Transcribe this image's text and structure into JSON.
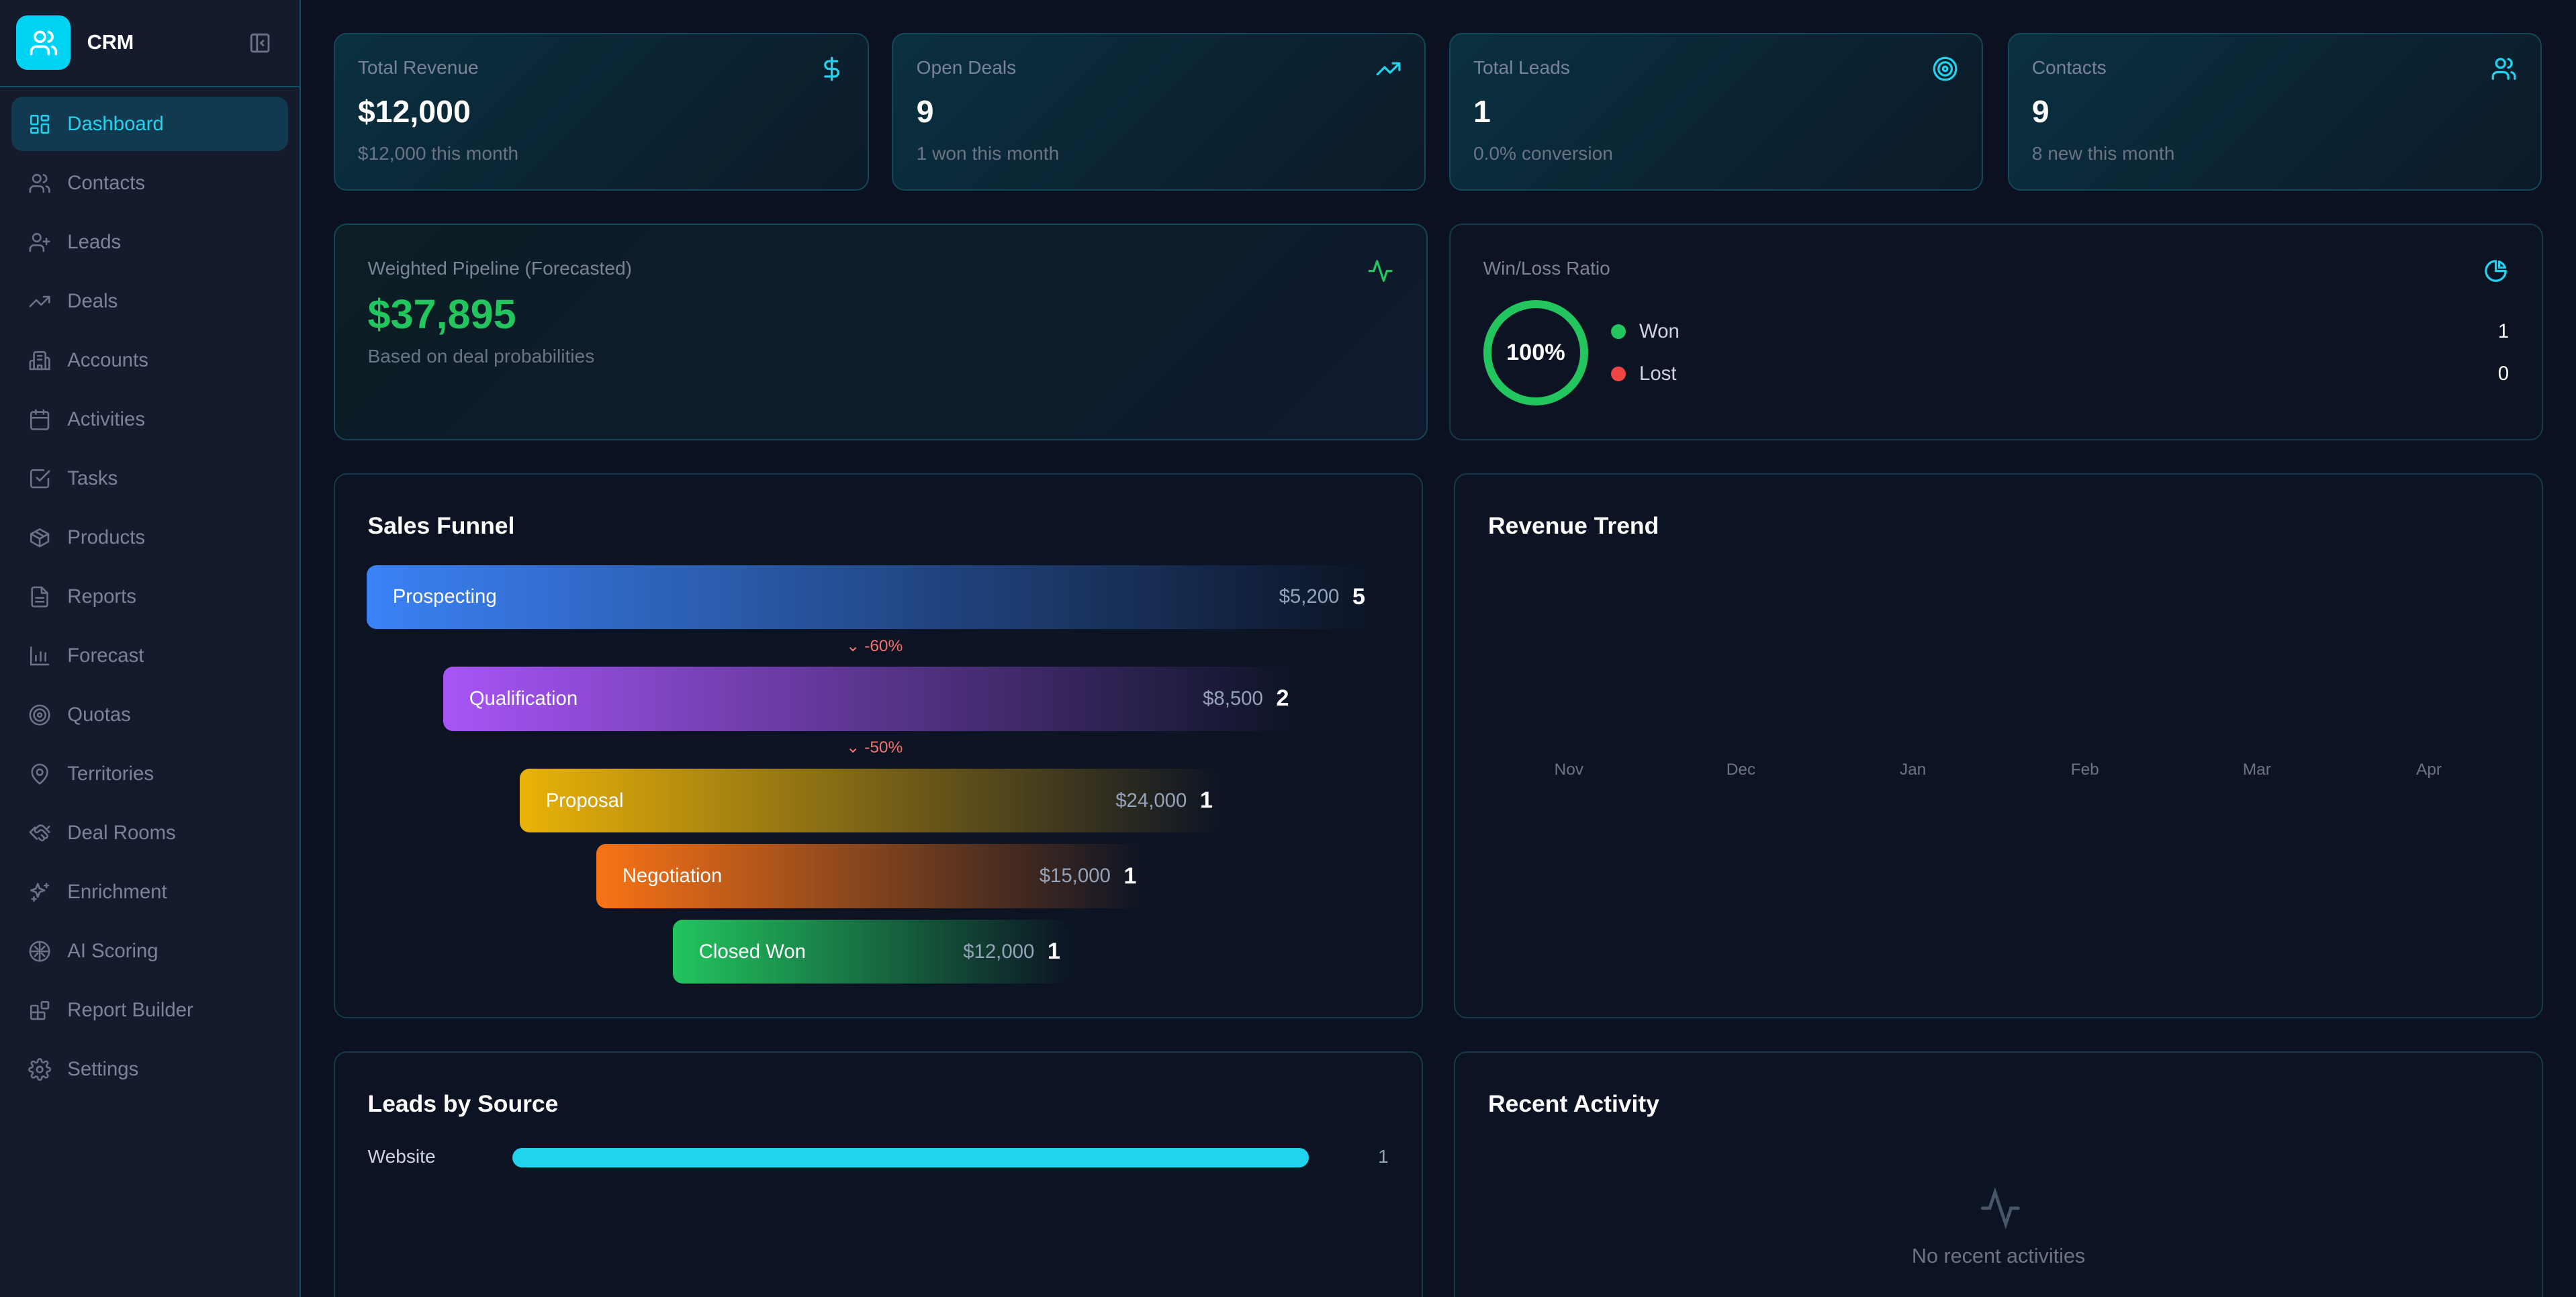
{
  "app": {
    "title": "CRM"
  },
  "sidebar": {
    "items": [
      {
        "label": "Dashboard",
        "icon": "layout-dashboard-icon",
        "active": true
      },
      {
        "label": "Contacts",
        "icon": "users-icon"
      },
      {
        "label": "Leads",
        "icon": "user-plus-icon"
      },
      {
        "label": "Deals",
        "icon": "trending-up-icon"
      },
      {
        "label": "Accounts",
        "icon": "building-icon"
      },
      {
        "label": "Activities",
        "icon": "calendar-icon"
      },
      {
        "label": "Tasks",
        "icon": "check-square-icon"
      },
      {
        "label": "Products",
        "icon": "package-icon"
      },
      {
        "label": "Reports",
        "icon": "file-text-icon"
      },
      {
        "label": "Forecast",
        "icon": "bar-chart-icon"
      },
      {
        "label": "Quotas",
        "icon": "target-icon"
      },
      {
        "label": "Territories",
        "icon": "map-pin-icon"
      },
      {
        "label": "Deal Rooms",
        "icon": "handshake-icon"
      },
      {
        "label": "Enrichment",
        "icon": "sparkles-icon"
      },
      {
        "label": "AI Scoring",
        "icon": "brain-icon"
      },
      {
        "label": "Report Builder",
        "icon": "blocks-icon"
      },
      {
        "label": "Settings",
        "icon": "gear-icon"
      }
    ]
  },
  "stats": [
    {
      "label": "Total Revenue",
      "value": "$12,000",
      "sub": "$12,000 this month",
      "icon": "dollar-icon"
    },
    {
      "label": "Open Deals",
      "value": "9",
      "sub": "1 won this month",
      "icon": "trending-up-icon"
    },
    {
      "label": "Total Leads",
      "value": "1",
      "sub": "0.0% conversion",
      "icon": "target-icon"
    },
    {
      "label": "Contacts",
      "value": "9",
      "sub": "8 new this month",
      "icon": "users-icon"
    }
  ],
  "pipeline": {
    "label": "Weighted Pipeline (Forecasted)",
    "value": "$37,895",
    "sub": "Based on deal probabilities",
    "color": "#22c55e"
  },
  "winloss": {
    "title": "Win/Loss Ratio",
    "percent": "100%",
    "won_label": "Won",
    "won": "1",
    "lost_label": "Lost",
    "lost": "0",
    "won_color": "#22c55e",
    "lost_color": "#ef4444"
  },
  "funnel": {
    "title": "Sales Funnel",
    "stages": [
      {
        "name": "Prospecting",
        "amount": "$5,200",
        "count": "5",
        "color": "#3b82f6"
      },
      {
        "name": "Qualification",
        "amount": "$8,500",
        "count": "2",
        "color": "#a855f7"
      },
      {
        "name": "Proposal",
        "amount": "$24,000",
        "count": "1",
        "color": "#eab308"
      },
      {
        "name": "Negotiation",
        "amount": "$15,000",
        "count": "1",
        "color": "#f97316"
      },
      {
        "name": "Closed Won",
        "amount": "$12,000",
        "count": "1",
        "color": "#22c55e"
      }
    ],
    "drops": [
      "-60%",
      "-50%"
    ]
  },
  "revenue_trend": {
    "title": "Revenue Trend",
    "months": [
      "Nov",
      "Dec",
      "Jan",
      "Feb",
      "Mar",
      "Apr"
    ]
  },
  "leads_source": {
    "title": "Leads by Source",
    "items": [
      {
        "label": "Website",
        "count": "1",
        "fraction": 1.0
      }
    ]
  },
  "recent": {
    "title": "Recent Activity",
    "empty": "No recent activities"
  }
}
